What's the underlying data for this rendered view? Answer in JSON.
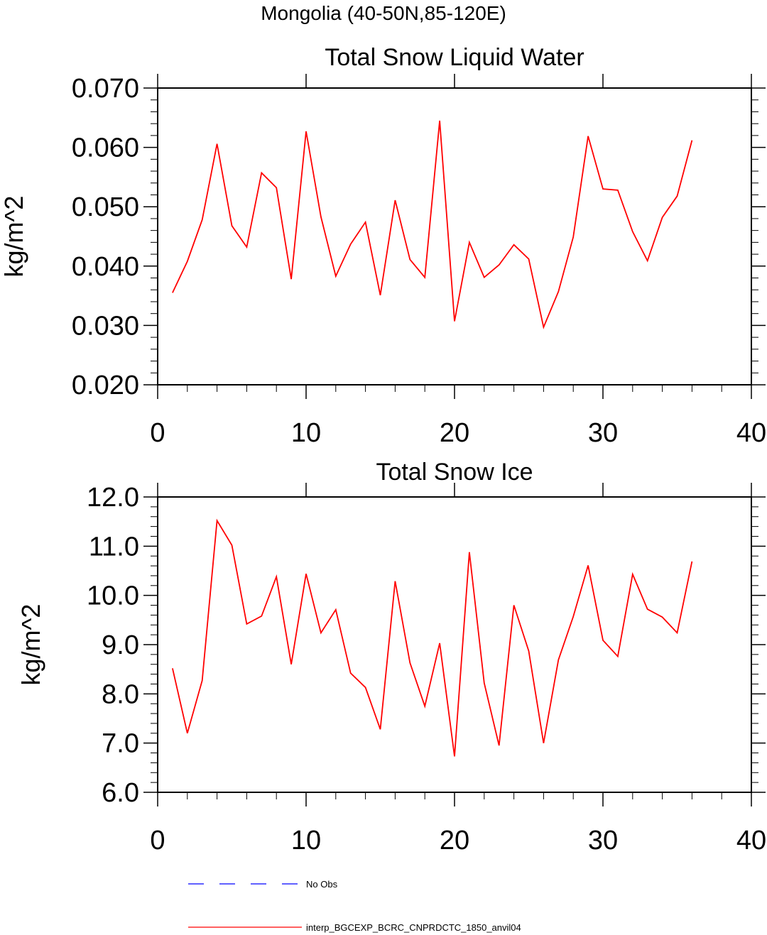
{
  "figure": {
    "suptitle": "Mongolia (40-50N,85-120E)"
  },
  "legend": {
    "items": [
      {
        "label": "No Obs",
        "color": "#0000ff",
        "dash": "dashed"
      },
      {
        "label": "interp_BGCEXP_BCRC_CNPRDCTC_1850_anvil04",
        "color": "#ff0000",
        "dash": "solid"
      }
    ]
  },
  "chart_data": [
    {
      "type": "line",
      "title": "Total Snow Liquid Water",
      "xlabel": "",
      "ylabel": "kg/m^2",
      "xlim": [
        0,
        40
      ],
      "ylim": [
        0.02,
        0.07
      ],
      "xticks": [
        0,
        10,
        20,
        30,
        40
      ],
      "xtick_labels": [
        "0",
        "10",
        "20",
        "30",
        "40"
      ],
      "yticks": [
        0.02,
        0.03,
        0.04,
        0.05,
        0.06,
        0.07
      ],
      "ytick_labels": [
        "0.020",
        "0.030",
        "0.040",
        "0.050",
        "0.060",
        "0.070"
      ],
      "grid": false,
      "series": [
        {
          "name": "interp_BGCEXP_BCRC_CNPRDCTC_1850_anvil04",
          "color": "#ff0000",
          "x": [
            1,
            2,
            3,
            4,
            5,
            6,
            7,
            8,
            9,
            10,
            11,
            12,
            13,
            14,
            15,
            16,
            17,
            18,
            19,
            20,
            21,
            22,
            23,
            24,
            25,
            26,
            27,
            28,
            29,
            30,
            31,
            32,
            33,
            34,
            35,
            36
          ],
          "values": [
            0.0355,
            0.0408,
            0.0478,
            0.0606,
            0.0468,
            0.0432,
            0.0557,
            0.0532,
            0.0378,
            0.0627,
            0.0483,
            0.0383,
            0.0437,
            0.0474,
            0.0351,
            0.0511,
            0.0411,
            0.0381,
            0.0645,
            0.0307,
            0.044,
            0.0381,
            0.0402,
            0.0436,
            0.0412,
            0.0297,
            0.0357,
            0.0449,
            0.0619,
            0.053,
            0.0528,
            0.0458,
            0.0409,
            0.0482,
            0.0518,
            0.0612
          ]
        }
      ]
    },
    {
      "type": "line",
      "title": "Total Snow Ice",
      "xlabel": "",
      "ylabel": "kg/m^2",
      "xlim": [
        0,
        40
      ],
      "ylim": [
        6.0,
        12.0
      ],
      "xticks": [
        0,
        10,
        20,
        30,
        40
      ],
      "xtick_labels": [
        "0",
        "10",
        "20",
        "30",
        "40"
      ],
      "yticks": [
        6,
        7,
        8,
        9,
        10,
        11,
        12
      ],
      "ytick_labels": [
        "6.0",
        "7.0",
        "8.0",
        "9.0",
        "10.0",
        "11.0",
        "12.0"
      ],
      "grid": false,
      "series": [
        {
          "name": "interp_BGCEXP_BCRC_CNPRDCTC_1850_anvil04",
          "color": "#ff0000",
          "x": [
            1,
            2,
            3,
            4,
            5,
            6,
            7,
            8,
            9,
            10,
            11,
            12,
            13,
            14,
            15,
            16,
            17,
            18,
            19,
            20,
            21,
            22,
            23,
            24,
            25,
            26,
            27,
            28,
            29,
            30,
            31,
            32,
            33,
            34,
            35,
            36
          ],
          "values": [
            8.52,
            7.2,
            8.27,
            11.52,
            11.02,
            9.42,
            9.58,
            10.38,
            8.6,
            10.44,
            9.24,
            9.71,
            8.42,
            8.13,
            7.28,
            10.29,
            8.63,
            7.75,
            9.03,
            6.73,
            10.88,
            8.22,
            6.95,
            9.8,
            8.87,
            7.0,
            8.69,
            9.57,
            10.61,
            9.09,
            8.76,
            10.43,
            9.72,
            9.56,
            9.24,
            10.69
          ]
        }
      ]
    }
  ]
}
